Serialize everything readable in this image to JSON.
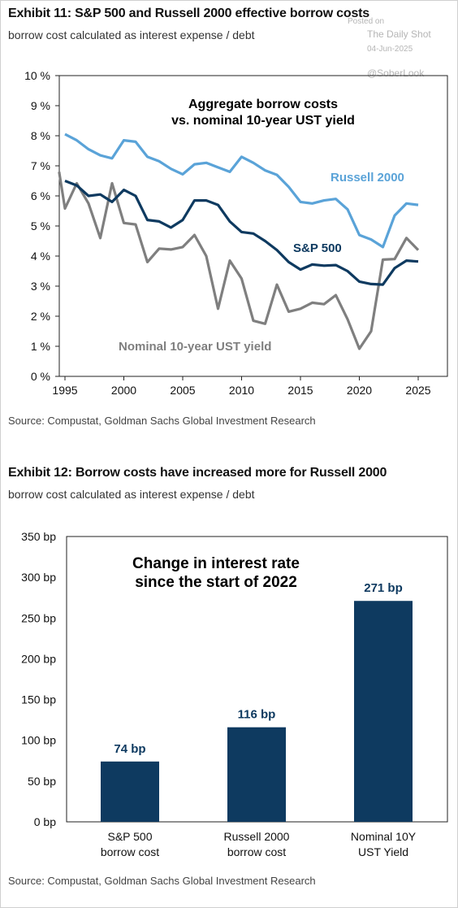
{
  "watermark": {
    "posted": "Posted on",
    "site": "The Daily Shot",
    "date": "04-Jun-2025",
    "handle": "@SoberLook"
  },
  "exhibit11": {
    "title": "Exhibit 11: S&P 500 and Russell 2000 effective borrow costs",
    "subtitle": "borrow cost calculated as interest expense / debt",
    "source": "Source: Compustat, Goldman Sachs Global Investment Research"
  },
  "exhibit12": {
    "title": "Exhibit 12: Borrow costs have increased more for Russell 2000",
    "subtitle": "borrow cost calculated as interest expense / debt",
    "source": "Source: Compustat, Goldman Sachs Global Investment Research"
  },
  "chart_data": [
    {
      "type": "line",
      "title_lines": [
        "Aggregate borrow costs",
        "vs. nominal 10-year UST yield"
      ],
      "xlim": [
        1995,
        2027
      ],
      "ylim": [
        0,
        10
      ],
      "x_ticks": [
        1995,
        2000,
        2005,
        2010,
        2015,
        2020,
        2025
      ],
      "y_ticks": [
        "0 %",
        "1 %",
        "2 %",
        "3 %",
        "4 %",
        "5 %",
        "6 %",
        "7 %",
        "8 %",
        "9 %",
        "10 %"
      ],
      "grid": false,
      "series": [
        {
          "name": "Russell 2000",
          "color": "#5aa3d8",
          "x": [
            1995,
            1996,
            1997,
            1998,
            1999,
            2000,
            2001,
            2002,
            2003,
            2004,
            2005,
            2006,
            2007,
            2008,
            2009,
            2010,
            2011,
            2012,
            2013,
            2014,
            2015,
            2016,
            2017,
            2018,
            2019,
            2020,
            2021,
            2022,
            2023,
            2024,
            2025
          ],
          "y": [
            8.05,
            7.85,
            7.55,
            7.35,
            7.25,
            7.85,
            7.8,
            7.3,
            7.15,
            6.9,
            6.72,
            7.05,
            7.1,
            6.95,
            6.8,
            7.3,
            7.1,
            6.85,
            6.7,
            6.3,
            5.8,
            5.75,
            5.85,
            5.9,
            5.55,
            4.7,
            4.55,
            4.3,
            5.35,
            5.75,
            5.7
          ]
        },
        {
          "name": "S&P 500",
          "color": "#0e3a60",
          "x": [
            1995,
            1996,
            1997,
            1998,
            1999,
            2000,
            2001,
            2002,
            2003,
            2004,
            2005,
            2006,
            2007,
            2008,
            2009,
            2010,
            2011,
            2012,
            2013,
            2014,
            2015,
            2016,
            2017,
            2018,
            2019,
            2020,
            2021,
            2022,
            2023,
            2024,
            2025
          ],
          "y": [
            6.5,
            6.35,
            6.0,
            6.05,
            5.8,
            6.2,
            6.0,
            5.2,
            5.15,
            4.95,
            5.2,
            5.85,
            5.85,
            5.7,
            5.15,
            4.8,
            4.75,
            4.5,
            4.2,
            3.8,
            3.55,
            3.72,
            3.68,
            3.7,
            3.5,
            3.15,
            3.07,
            3.05,
            3.6,
            3.85,
            3.82
          ]
        },
        {
          "name": "Nominal 10-year UST yield",
          "color": "#7f7f7f",
          "x": [
            1994.5,
            1995,
            1996,
            1997,
            1998,
            1999,
            2000,
            2001,
            2002,
            2003,
            2004,
            2005,
            2006,
            2007,
            2008,
            2009,
            2010,
            2011,
            2012,
            2013,
            2014,
            2015,
            2016,
            2017,
            2018,
            2019,
            2020,
            2021,
            2022,
            2023,
            2024,
            2025
          ],
          "y": [
            6.8,
            5.58,
            6.42,
            5.75,
            4.6,
            6.42,
            5.1,
            5.05,
            3.8,
            4.25,
            4.22,
            4.3,
            4.7,
            4.0,
            2.25,
            3.85,
            3.25,
            1.85,
            1.75,
            3.05,
            2.15,
            2.25,
            2.45,
            2.4,
            2.7,
            1.9,
            0.92,
            1.5,
            3.88,
            3.9,
            4.6,
            4.2
          ]
        }
      ],
      "label_text": {
        "russell": "Russell 2000",
        "sp500": "S&P 500",
        "ust": "Nominal 10-year UST yield"
      }
    },
    {
      "type": "bar",
      "title_lines": [
        "Change in interest rate",
        "since the start of 2022"
      ],
      "categories": [
        [
          "S&P 500",
          "borrow cost"
        ],
        [
          "Russell 2000",
          "borrow cost"
        ],
        [
          "Nominal 10Y",
          "UST Yield"
        ]
      ],
      "values": [
        74,
        116,
        271
      ],
      "value_labels": [
        "74 bp",
        "116 bp",
        "271 bp"
      ],
      "ylim": [
        0,
        350
      ],
      "y_ticks": [
        "0 bp",
        "50 bp",
        "100 bp",
        "150 bp",
        "200 bp",
        "250 bp",
        "300 bp",
        "350 bp"
      ],
      "bar_color": "#0e3a60",
      "grid": false
    }
  ]
}
